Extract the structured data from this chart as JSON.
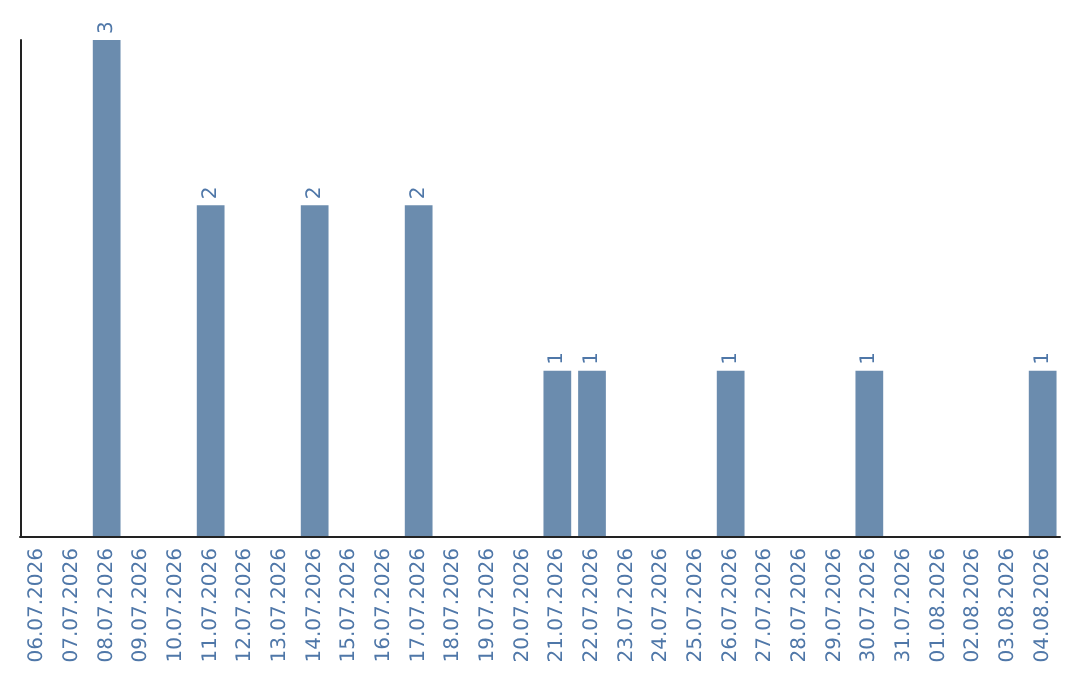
{
  "chart_data": {
    "type": "bar",
    "categories": [
      "06.07.2026",
      "07.07.2026",
      "08.07.2026",
      "09.07.2026",
      "10.07.2026",
      "11.07.2026",
      "12.07.2026",
      "13.07.2026",
      "14.07.2026",
      "15.07.2026",
      "16.07.2026",
      "17.07.2026",
      "18.07.2026",
      "19.07.2026",
      "20.07.2026",
      "21.07.2026",
      "22.07.2026",
      "23.07.2026",
      "24.07.2026",
      "25.07.2026",
      "26.07.2026",
      "27.07.2026",
      "28.07.2026",
      "29.07.2026",
      "30.07.2026",
      "31.07.2026",
      "01.08.2026",
      "02.08.2026",
      "03.08.2026",
      "04.08.2026"
    ],
    "values": [
      0,
      0,
      3,
      0,
      0,
      2,
      0,
      0,
      2,
      0,
      0,
      2,
      0,
      0,
      0,
      1,
      1,
      0,
      0,
      0,
      1,
      0,
      0,
      0,
      1,
      0,
      0,
      0,
      0,
      1
    ],
    "value_labels": [
      null,
      null,
      "3",
      null,
      null,
      "2",
      null,
      null,
      "2",
      null,
      null,
      "2",
      null,
      null,
      null,
      "1",
      "1",
      null,
      null,
      null,
      "1",
      null,
      null,
      null,
      "1",
      null,
      null,
      null,
      null,
      "1"
    ],
    "color": "#6b8cae",
    "tick_labels": "x"
  }
}
